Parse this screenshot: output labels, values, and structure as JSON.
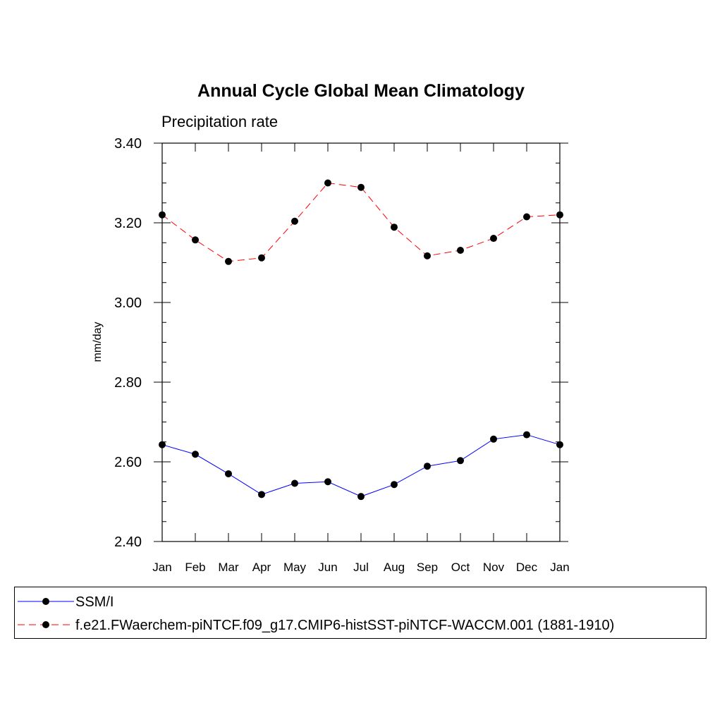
{
  "chart_data": {
    "type": "line",
    "title": "Annual Cycle Global Mean Climatology",
    "subtitle": "Precipitation rate",
    "xlabel": "",
    "ylabel": "mm/day",
    "categories": [
      "Jan",
      "Feb",
      "Mar",
      "Apr",
      "May",
      "Jun",
      "Jul",
      "Aug",
      "Sep",
      "Oct",
      "Nov",
      "Dec",
      "Jan"
    ],
    "ylim": [
      2.4,
      3.4
    ],
    "yticks": [
      "2.40",
      "2.60",
      "2.80",
      "3.00",
      "3.20",
      "3.40"
    ],
    "grid": false,
    "legend_position": "bottom",
    "series": [
      {
        "name": "SSM/I",
        "color": "#0000ff",
        "line_style": "solid",
        "marker": "filled-circle",
        "values": [
          2.643,
          2.619,
          2.57,
          2.518,
          2.546,
          2.55,
          2.513,
          2.543,
          2.589,
          2.603,
          2.657,
          2.668,
          2.643
        ]
      },
      {
        "name": "f.e21.FWaerchem-piNTCF.f09_g17.CMIP6-histSST-piNTCF-WACCM.001 (1881-1910)",
        "color": "#ff0000",
        "line_style": "dashed",
        "marker": "filled-circle",
        "values": [
          3.22,
          3.157,
          3.103,
          3.112,
          3.204,
          3.3,
          3.289,
          3.189,
          3.117,
          3.131,
          3.161,
          3.215,
          3.22
        ]
      }
    ]
  }
}
